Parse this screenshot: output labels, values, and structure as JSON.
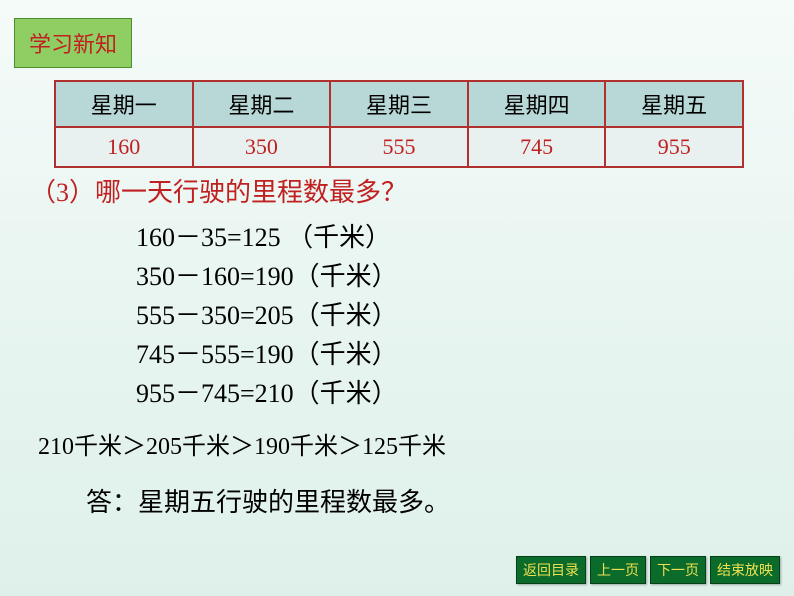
{
  "badge": {
    "label": "学习新知"
  },
  "table": {
    "headers": [
      "星期一",
      "星期二",
      "星期三",
      "星期四",
      "星期五"
    ],
    "values": [
      "160",
      "350",
      "555",
      "745",
      "955"
    ],
    "header_bg": "#b8d8d8",
    "cell_bg": "#e8f0f0",
    "border_color": "#b03030",
    "value_color": "#c02020"
  },
  "question": {
    "text": "（3）哪一天行驶的里程数最多？",
    "color": "#c02020"
  },
  "calculations": [
    "160－35=125 （千米）",
    "350－160=190（千米）",
    "555－350=205（千米）",
    "745－555=190（千米）",
    "955－745=210（千米）"
  ],
  "comparison": "210千米＞205千米＞190千米＞125千米",
  "answer": "答：星期五行驶的里程数最多。",
  "nav": {
    "back": "返回目录",
    "prev": "上一页",
    "next": "下一页",
    "end": "结束放映"
  }
}
